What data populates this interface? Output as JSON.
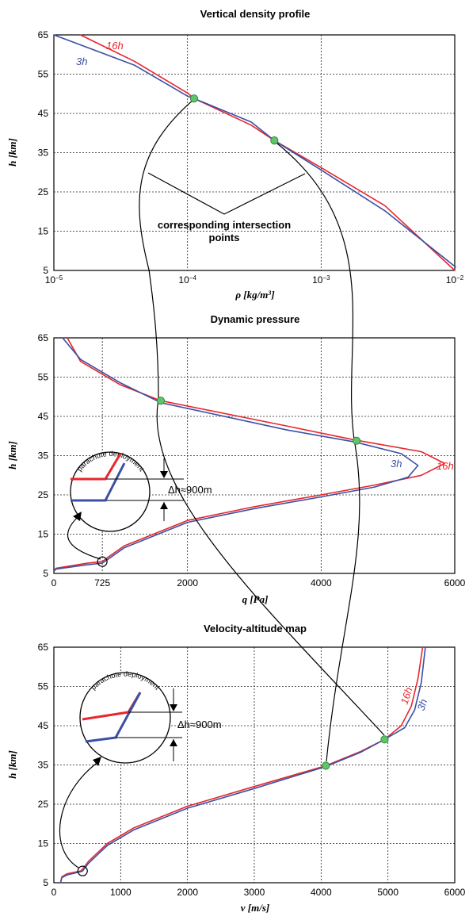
{
  "colors": {
    "h16": "#e8262d",
    "h3": "#3b50a3",
    "marker": "#5fc46a",
    "grid": "#222222"
  },
  "annotation": {
    "intersection_line1": "corresponding intersection",
    "intersection_line2": "points"
  },
  "inset": {
    "label": "parachute deployment",
    "dh": "Δh≈900m"
  },
  "chart_data": [
    {
      "type": "line",
      "title": "Vertical density profile",
      "xlabel": "ρ [kg/m³]",
      "ylabel": "h [km]",
      "xscale": "log",
      "xlim": [
        1e-05,
        0.01
      ],
      "ylim": [
        5,
        65
      ],
      "x_ticks": [
        1e-05,
        0.0001,
        0.001,
        0.01
      ],
      "x_tick_labels": [
        {
          "base": "10",
          "exp": "−5"
        },
        {
          "base": "10",
          "exp": "−4"
        },
        {
          "base": "10",
          "exp": "−3"
        },
        {
          "base": "10",
          "exp": "−2"
        }
      ],
      "y_ticks": [
        5,
        15,
        25,
        35,
        45,
        55,
        65
      ],
      "series": [
        {
          "name": "16h",
          "x": [
            1.58e-05,
            4e-05,
            0.0001,
            0.000112,
            0.0003,
            0.000447,
            0.001,
            0.003,
            0.01
          ],
          "y": [
            65,
            58.3,
            50.2,
            48.8,
            42,
            38.1,
            31.2,
            21.5,
            5
          ]
        },
        {
          "name": "3h",
          "x": [
            1e-05,
            4e-05,
            0.0001,
            0.000112,
            0.0003,
            0.000447,
            0.001,
            0.003,
            0.0102
          ],
          "y": [
            65,
            57.3,
            49.4,
            48.8,
            42.8,
            38.1,
            30.6,
            20.2,
            5.8
          ]
        }
      ],
      "intersections": [
        {
          "x": 0.000112,
          "y": 48.8
        },
        {
          "x": 0.000447,
          "y": 38.1
        }
      ]
    },
    {
      "type": "line",
      "title": "Dynamic pressure",
      "xlabel": "q [Pa]",
      "ylabel": "h [km]",
      "xlim": [
        0,
        6000
      ],
      "ylim": [
        5,
        65
      ],
      "x_ticks": [
        0,
        725,
        2000,
        4000,
        6000
      ],
      "y_ticks": [
        5,
        15,
        25,
        35,
        45,
        55,
        65
      ],
      "series": [
        {
          "name": "16h",
          "x": [
            0,
            30,
            500,
            725,
            800,
            1050,
            2000,
            3000,
            4000,
            4800,
            5500,
            5850,
            5500,
            4500,
            3500,
            1600,
            1000,
            400,
            200
          ],
          "y": [
            5.5,
            6.3,
            7.6,
            8,
            9,
            12,
            18.5,
            22,
            25,
            27.5,
            30,
            33,
            36,
            39,
            42.5,
            49,
            53,
            59,
            65
          ]
        },
        {
          "name": "3h",
          "x": [
            0,
            30,
            500,
            725,
            800,
            1050,
            2000,
            3000,
            4000,
            4800,
            5300,
            5450,
            5200,
            4500,
            3500,
            1600,
            1000,
            400,
            130
          ],
          "y": [
            5.5,
            6.1,
            7.2,
            7.6,
            8.5,
            11.5,
            18,
            21.5,
            24.5,
            27,
            29.5,
            32.5,
            35.5,
            38.5,
            41.5,
            48.5,
            53.5,
            59.5,
            65
          ]
        }
      ],
      "intersections": [
        {
          "x": 1600,
          "y": 49
        },
        {
          "x": 4530,
          "y": 38.8
        }
      ],
      "highlight": {
        "x": 725,
        "y": 8
      }
    },
    {
      "type": "line",
      "title": "Velocity-altitude map",
      "xlabel": "v [m/s]",
      "ylabel": "h [km]",
      "xlim": [
        0,
        6000
      ],
      "ylim": [
        5,
        65
      ],
      "x_ticks": [
        0,
        1000,
        2000,
        3000,
        4000,
        5000,
        6000
      ],
      "y_ticks": [
        5,
        15,
        25,
        35,
        45,
        55,
        65
      ],
      "series": [
        {
          "name": "16h",
          "x": [
            100,
            120,
            200,
            400,
            430,
            520,
            800,
            1200,
            2000,
            3000,
            4070,
            4600,
            4950,
            5200,
            5350,
            5450,
            5520
          ],
          "y": [
            5,
            6.5,
            7.3,
            8,
            8.5,
            10.5,
            15,
            19,
            24.5,
            29.5,
            34.8,
            38.5,
            41.5,
            45,
            50,
            57,
            65
          ]
        },
        {
          "name": "3h",
          "x": [
            100,
            120,
            200,
            400,
            430,
            520,
            800,
            1200,
            2000,
            3000,
            4070,
            4600,
            4950,
            5250,
            5400,
            5500,
            5560
          ],
          "y": [
            5,
            6.3,
            7,
            7.8,
            8,
            10,
            14.5,
            18.5,
            24,
            29,
            34.6,
            38.3,
            41.5,
            44.5,
            49,
            56,
            65
          ]
        }
      ],
      "intersections": [
        {
          "x": 4070,
          "y": 34.8
        },
        {
          "x": 4950,
          "y": 41.5
        }
      ],
      "highlight": {
        "x": 430,
        "y": 8
      }
    }
  ]
}
